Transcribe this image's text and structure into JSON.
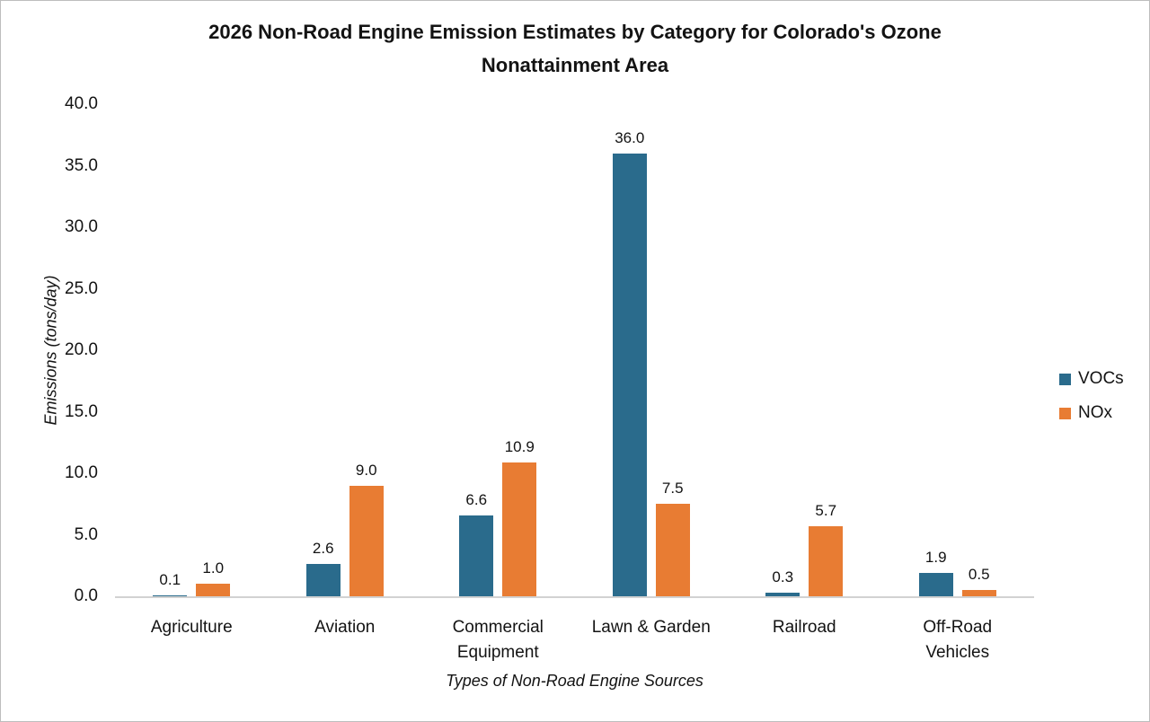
{
  "chart_data": {
    "type": "bar",
    "title": "2026 Non-Road Engine Emission Estimates by Category for Colorado's  Ozone Nonattainment Area",
    "title_lines": [
      "2026 Non-Road Engine Emission Estimates by Category for Colorado's  Ozone",
      "Nonattainment Area"
    ],
    "xlabel": "Types of Non-Road Engine Sources",
    "ylabel": "Emissions (tons/day)",
    "categories": [
      "Agriculture",
      "Aviation",
      "Commercial Equipment",
      "Lawn & Garden",
      "Railroad",
      "Off-Road Vehicles"
    ],
    "category_lines": [
      [
        "Agriculture"
      ],
      [
        "Aviation"
      ],
      [
        "Commercial",
        "Equipment"
      ],
      [
        "Lawn & Garden"
      ],
      [
        "Railroad"
      ],
      [
        "Off-Road",
        "Vehicles"
      ]
    ],
    "series": [
      {
        "name": "VOCs",
        "color": "#2A6B8C",
        "values": [
          0.1,
          2.6,
          6.6,
          36.0,
          0.3,
          1.9
        ]
      },
      {
        "name": "NOx",
        "color": "#E87C33",
        "values": [
          1.0,
          9.0,
          10.9,
          7.5,
          5.7,
          0.5
        ]
      }
    ],
    "ylim": [
      0,
      40
    ],
    "ytick_labels": [
      "0.0",
      "5.0",
      "10.0",
      "15.0",
      "20.0",
      "25.0",
      "30.0",
      "35.0",
      "40.0"
    ],
    "grid": false,
    "legend_position": "right",
    "data_labels": true
  },
  "colors": {
    "background": "#FFFFFF",
    "frame_border": "#BDBDBD",
    "axis_line": "#D2D2D2",
    "text": "#131313"
  }
}
